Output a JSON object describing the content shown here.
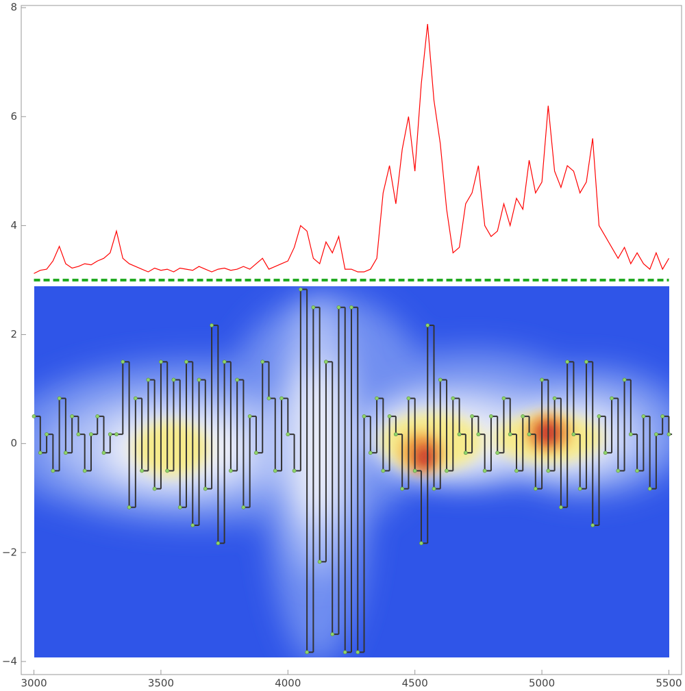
{
  "chart_data": {
    "type": "line",
    "x": [
      3000,
      3025,
      3050,
      3075,
      3100,
      3125,
      3150,
      3175,
      3200,
      3225,
      3250,
      3275,
      3300,
      3325,
      3350,
      3375,
      3400,
      3425,
      3450,
      3475,
      3500,
      3525,
      3550,
      3575,
      3600,
      3625,
      3650,
      3675,
      3700,
      3725,
      3750,
      3775,
      3800,
      3825,
      3850,
      3875,
      3900,
      3925,
      3950,
      3975,
      4000,
      4025,
      4050,
      4075,
      4100,
      4125,
      4150,
      4175,
      4200,
      4225,
      4250,
      4275,
      4300,
      4325,
      4350,
      4375,
      4400,
      4425,
      4450,
      4475,
      4500,
      4525,
      4550,
      4575,
      4600,
      4625,
      4650,
      4675,
      4700,
      4725,
      4750,
      4775,
      4800,
      4825,
      4850,
      4875,
      4900,
      4925,
      4950,
      4975,
      5000,
      5025,
      5050,
      5075,
      5100,
      5125,
      5150,
      5175,
      5200,
      5225,
      5250,
      5275,
      5300,
      5325,
      5350,
      5375,
      5400,
      5425,
      5450,
      5475,
      5500
    ],
    "series": [
      {
        "color": "#ff0000",
        "values": [
          3.12,
          3.18,
          3.2,
          3.35,
          3.62,
          3.3,
          3.22,
          3.25,
          3.3,
          3.28,
          3.35,
          3.4,
          3.5,
          3.9,
          3.4,
          3.3,
          3.25,
          3.2,
          3.15,
          3.22,
          3.18,
          3.2,
          3.15,
          3.22,
          3.2,
          3.18,
          3.25,
          3.2,
          3.15,
          3.2,
          3.22,
          3.18,
          3.2,
          3.25,
          3.2,
          3.3,
          3.4,
          3.2,
          3.25,
          3.3,
          3.35,
          3.6,
          4.0,
          3.9,
          3.4,
          3.3,
          3.7,
          3.5,
          3.8,
          3.2,
          3.2,
          3.15,
          3.15,
          3.2,
          3.4,
          4.6,
          5.1,
          4.4,
          5.4,
          6.0,
          5.0,
          6.6,
          7.7,
          6.3,
          5.5,
          4.3,
          3.5,
          3.6,
          4.4,
          4.6,
          5.1,
          4.0,
          3.8,
          3.9,
          4.4,
          4.0,
          4.5,
          4.3,
          5.2,
          4.6,
          4.8,
          6.2,
          5.0,
          4.7,
          5.1,
          5.0,
          4.6,
          4.8,
          5.6,
          4.0,
          3.8,
          3.6,
          3.4,
          3.6,
          3.3,
          3.5,
          3.3,
          3.2,
          3.5,
          3.2,
          3.4
        ]
      },
      {
        "color": "#333333",
        "point_color": "#8fd46a",
        "step": true,
        "values": [
          0.5,
          -0.17,
          0.17,
          -0.5,
          0.83,
          -0.17,
          0.5,
          0.17,
          -0.5,
          0.17,
          0.5,
          -0.17,
          0.17,
          0.17,
          1.5,
          -1.17,
          0.83,
          -0.5,
          1.17,
          -0.83,
          1.5,
          -0.5,
          1.17,
          -1.17,
          1.5,
          -1.5,
          1.17,
          -0.83,
          2.17,
          -1.83,
          1.5,
          -0.5,
          1.17,
          -1.17,
          0.5,
          -0.17,
          1.5,
          0.83,
          -0.5,
          0.83,
          0.17,
          -0.5,
          2.83,
          -3.83,
          2.5,
          -2.17,
          1.5,
          -3.5,
          2.5,
          -3.83,
          2.5,
          -3.83,
          0.5,
          -0.17,
          0.83,
          -0.5,
          0.5,
          0.17,
          -0.83,
          0.83,
          -0.5,
          -1.83,
          2.17,
          -0.83,
          1.17,
          -0.5,
          0.83,
          0.17,
          -0.17,
          0.5,
          0.17,
          -0.5,
          0.5,
          -0.17,
          0.83,
          0.17,
          -0.5,
          0.5,
          0.17,
          -0.83,
          1.17,
          -0.5,
          0.83,
          -1.17,
          1.5,
          0.17,
          -0.83,
          1.5,
          -1.5,
          0.5,
          -0.17,
          0.83,
          -0.5,
          1.17,
          0.17,
          -0.5,
          0.5,
          -0.83,
          0.17,
          0.5,
          0.17
        ]
      }
    ],
    "hline": {
      "value": 3,
      "color": "#22aa22"
    },
    "xlim": [
      2950,
      5550
    ],
    "ylim": [
      -4.24,
      8.04
    ],
    "xticks": [
      3000,
      3500,
      4000,
      4500,
      5000,
      5500
    ],
    "yticks": [
      {
        "value": -4,
        "label": "−4"
      },
      {
        "value": -2,
        "label": "−2"
      },
      0,
      2,
      4,
      6,
      8
    ]
  }
}
